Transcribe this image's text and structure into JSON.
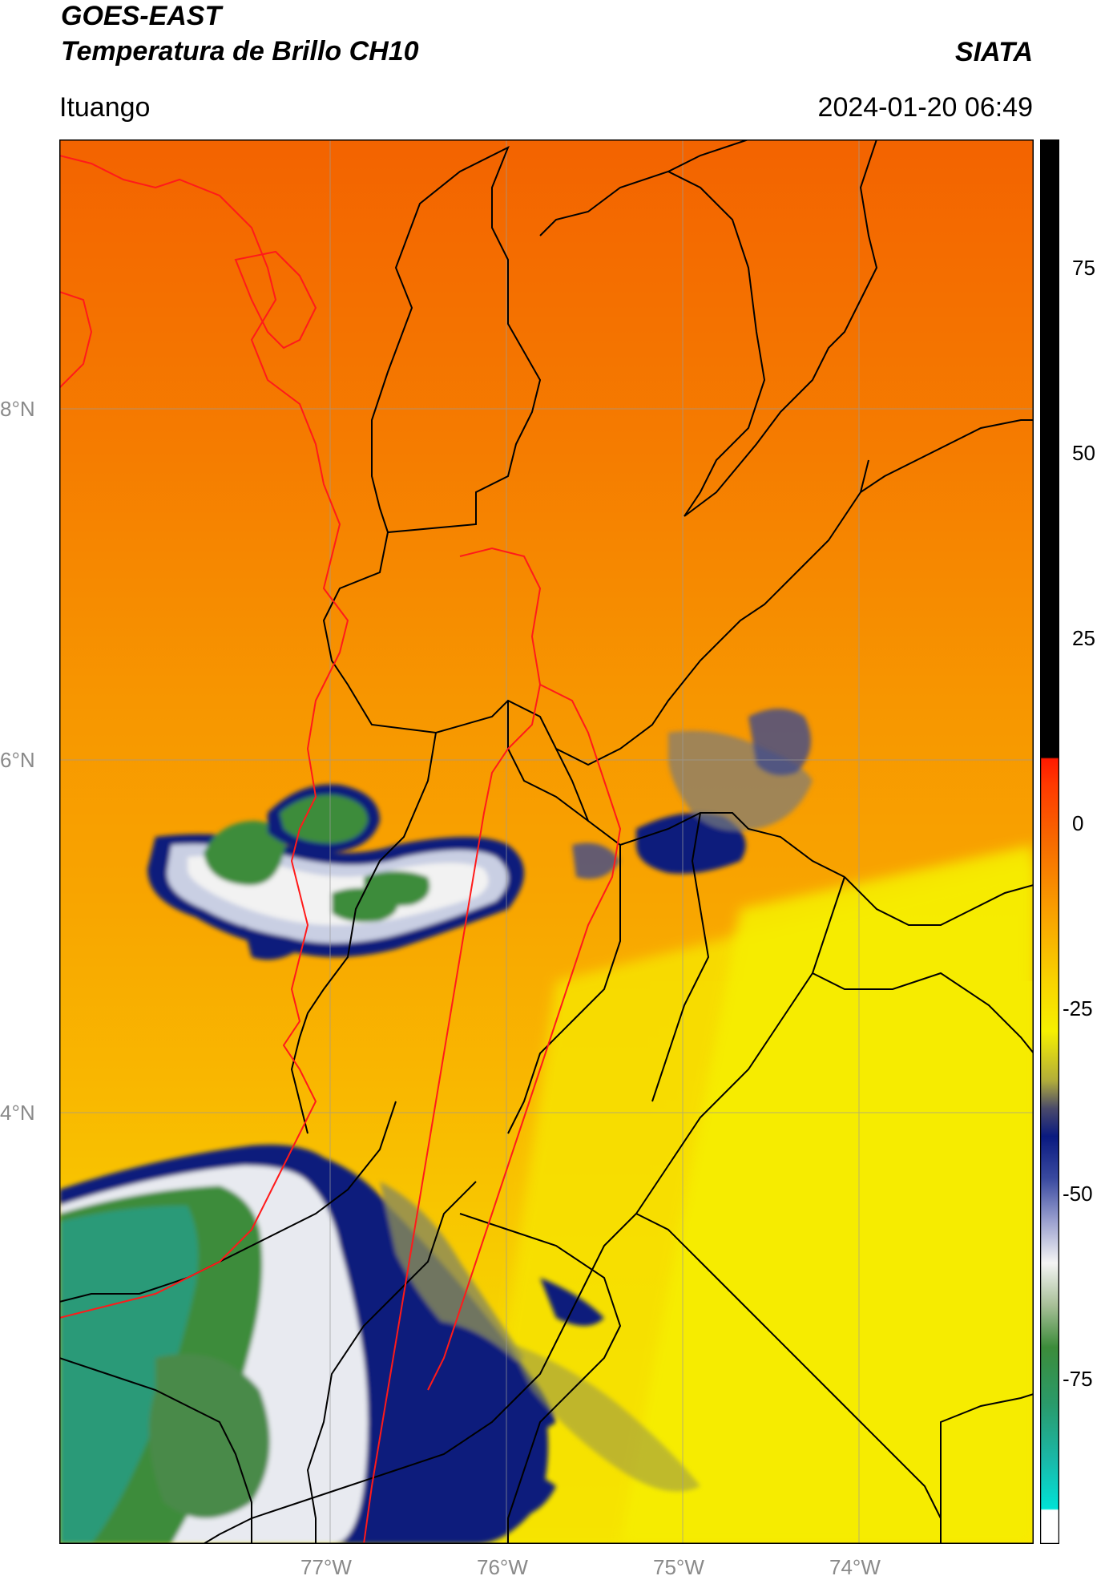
{
  "header": {
    "title_line1": "GOES-EAST",
    "title_line2": "Temperatura de Brillo CH10",
    "brand": "SIATA",
    "location": "Ituango",
    "timestamp": "2024-01-20 06:49"
  },
  "map": {
    "lat_labels": [
      "8°N",
      "6°N",
      "4°N"
    ],
    "lon_labels": [
      "77°W",
      "76°W",
      "75°W",
      "74°W"
    ],
    "colors": {
      "warm_top": "#f56a00",
      "warm_mid": "#f9a200",
      "yellow": "#f7ef00",
      "olive": "#b6b23a",
      "navy": "#0a1f7c",
      "white_cloud": "#f2f2f2",
      "green_cloud": "#3c8c3a",
      "teal_cloud": "#2a9a78",
      "border_black": "#000000",
      "border_red": "#ff1a1a"
    }
  },
  "colorbar": {
    "ticks": [
      "75",
      "50",
      "25",
      "0",
      "-25",
      "-50",
      "-75"
    ],
    "range": [
      -95,
      90
    ],
    "unit_note": ""
  }
}
